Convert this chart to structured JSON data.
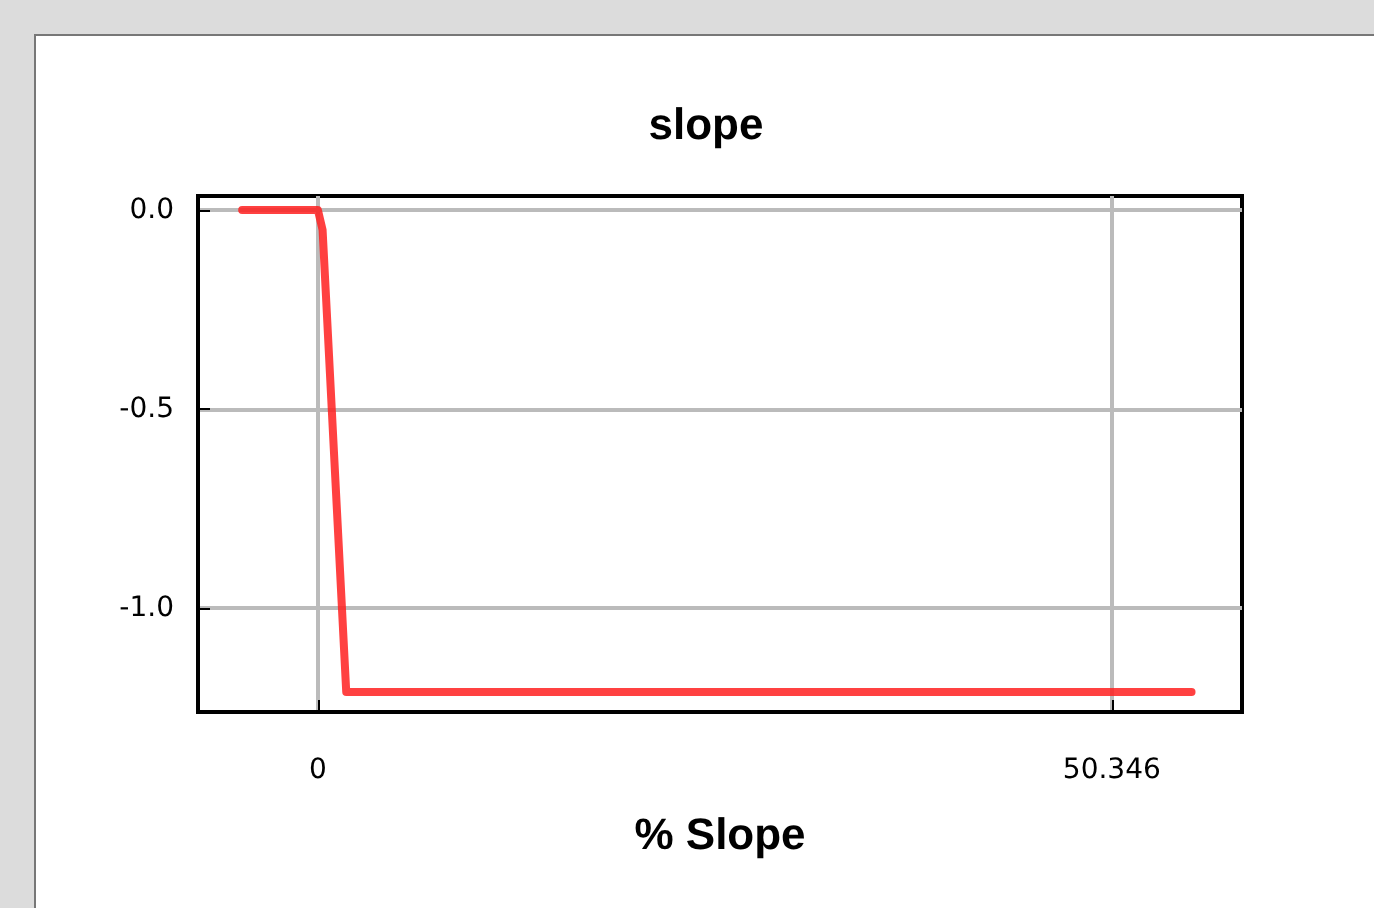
{
  "chart_data": {
    "type": "line",
    "title": "slope",
    "xlabel": "% Slope",
    "x": [
      -4.8,
      0,
      0.3,
      1.8,
      55.4
    ],
    "series": [
      {
        "color": "#ff2020",
        "values": [
          0,
          0,
          -0.05,
          -1.21,
          -1.21
        ]
      }
    ],
    "xlim": [
      -7.6,
      58.6
    ],
    "xticks": [
      0,
      50.346
    ],
    "ylim": [
      -1.26,
      0.035
    ],
    "yticks": [
      {
        "value": 0,
        "label": "0.0"
      },
      {
        "value": -0.5,
        "label": "-0.5"
      },
      {
        "value": -1,
        "label": "-1.0"
      }
    ],
    "grid": true,
    "marker": "none",
    "line_style": "solid"
  }
}
